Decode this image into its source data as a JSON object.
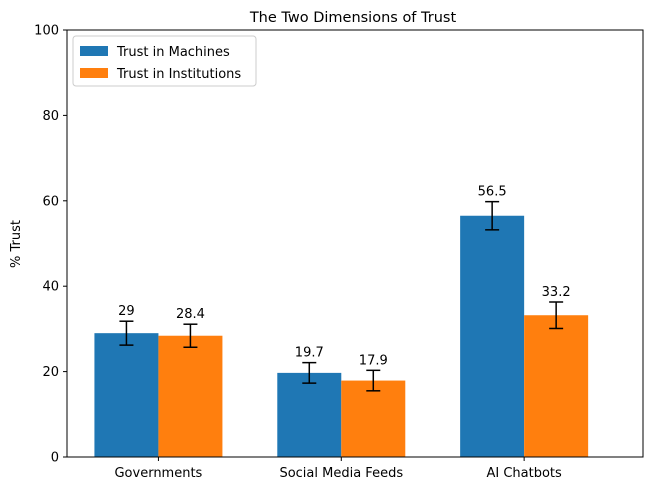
{
  "chart_data": {
    "type": "bar",
    "title": "The Two Dimensions of Trust",
    "xlabel": "",
    "ylabel": "% Trust",
    "categories": [
      "Governments",
      "Social Media Feeds",
      "AI Chatbots"
    ],
    "series": [
      {
        "name": "Trust in Machines",
        "color": "#1f77b4",
        "values": [
          29,
          19.7,
          56.5
        ],
        "labels": [
          "29",
          "19.7",
          "56.5"
        ],
        "errors": [
          2.8,
          2.4,
          3.3
        ]
      },
      {
        "name": "Trust in Institutions",
        "color": "#ff7f0e",
        "values": [
          28.4,
          17.9,
          33.2
        ],
        "labels": [
          "28.4",
          "17.9",
          "33.2"
        ],
        "errors": [
          2.7,
          2.4,
          3.1
        ]
      }
    ],
    "ylim": [
      0,
      100
    ],
    "yticks": [
      0,
      20,
      40,
      60,
      80,
      100
    ],
    "grid": false,
    "legend": "top-left"
  }
}
